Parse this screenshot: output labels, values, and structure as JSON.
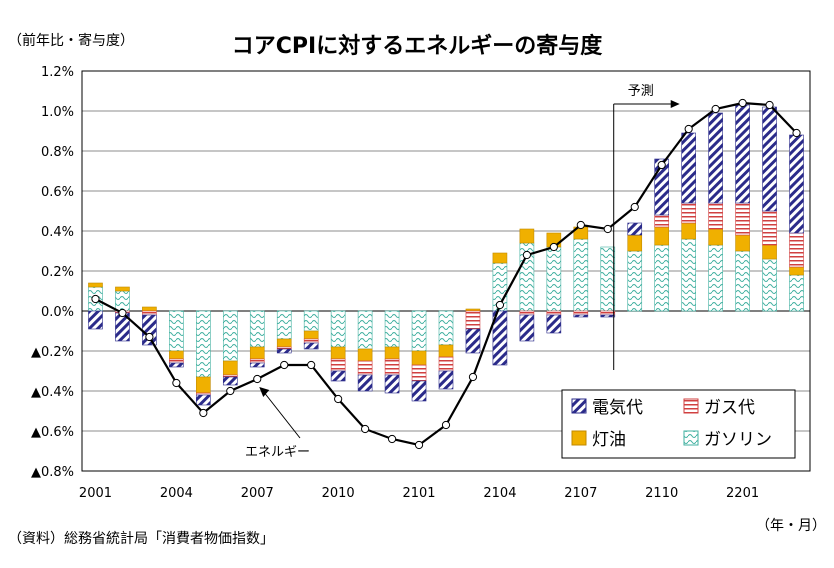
{
  "chart_data": {
    "type": "bar",
    "title": "コアCPIに対するエネルギーの寄与度",
    "ylabel": "（前年比・寄与度）",
    "xlabel": "（年・月）",
    "source": "（資料）総務省統計局「消費者物価指数」",
    "ylim": [
      -0.8,
      1.2
    ],
    "yticks": [
      1.2,
      1.0,
      0.8,
      0.6,
      0.4,
      0.2,
      0.0,
      -0.2,
      -0.4,
      -0.6,
      -0.8
    ],
    "ytick_labels": [
      "1.2%",
      "1.0%",
      "0.8%",
      "0.6%",
      "0.4%",
      "0.2%",
      "0.0%",
      "▲0.2%",
      "▲0.4%",
      "▲0.6%",
      "▲0.8%"
    ],
    "categories": [
      "2001",
      "2002",
      "2003",
      "2004",
      "2005",
      "2006",
      "2007",
      "2008",
      "2009",
      "2010",
      "2011",
      "2012",
      "2101",
      "2102",
      "2103",
      "2104",
      "2105",
      "2106",
      "2107",
      "2108",
      "2109",
      "2110",
      "2111",
      "2112",
      "2201",
      "2202",
      "2203"
    ],
    "xtick_labels": [
      "2001",
      "2004",
      "2007",
      "2010",
      "2101",
      "2104",
      "2107",
      "2110",
      "2201"
    ],
    "series": [
      {
        "name": "電気代",
        "color": "#2b2b8a",
        "values": [
          -0.09,
          -0.14,
          -0.15,
          -0.02,
          -0.05,
          -0.04,
          -0.02,
          -0.02,
          -0.03,
          -0.05,
          -0.08,
          -0.09,
          -0.1,
          -0.09,
          -0.12,
          -0.27,
          -0.13,
          -0.09,
          -0.01,
          -0.01,
          0.06,
          0.28,
          0.35,
          0.45,
          0.49,
          0.52,
          0.49
        ]
      },
      {
        "name": "ガス代",
        "color": "#d04040",
        "values": [
          0.0,
          -0.01,
          -0.02,
          -0.02,
          -0.01,
          -0.01,
          -0.02,
          -0.01,
          -0.02,
          -0.06,
          -0.07,
          -0.08,
          -0.08,
          -0.07,
          -0.09,
          0.0,
          -0.02,
          -0.02,
          -0.02,
          -0.02,
          0.0,
          0.06,
          0.1,
          0.13,
          0.16,
          0.17,
          0.17
        ]
      },
      {
        "name": "灯油",
        "color": "#f0b000",
        "values": [
          0.02,
          0.02,
          0.02,
          -0.04,
          -0.08,
          -0.07,
          -0.06,
          -0.04,
          -0.04,
          -0.06,
          -0.06,
          -0.06,
          -0.07,
          -0.06,
          0.01,
          0.05,
          0.07,
          0.07,
          0.06,
          0.0,
          0.08,
          0.09,
          0.08,
          0.08,
          0.08,
          0.07,
          0.04
        ]
      },
      {
        "name": "ガソリン",
        "color": "#40b0a0",
        "values": [
          0.12,
          0.1,
          0.0,
          -0.2,
          -0.33,
          -0.25,
          -0.18,
          -0.14,
          -0.1,
          -0.18,
          -0.19,
          -0.18,
          -0.2,
          -0.17,
          0.0,
          0.24,
          0.34,
          0.32,
          0.36,
          0.32,
          0.3,
          0.33,
          0.36,
          0.33,
          0.3,
          0.26,
          0.18
        ]
      }
    ],
    "line": {
      "name": "エネルギー",
      "values": [
        0.06,
        -0.01,
        -0.13,
        -0.36,
        -0.51,
        -0.4,
        -0.34,
        -0.27,
        -0.27,
        -0.44,
        -0.59,
        -0.64,
        -0.67,
        -0.57,
        -0.33,
        0.03,
        0.28,
        0.32,
        0.43,
        0.41,
        0.52,
        0.73,
        0.91,
        1.01,
        1.04,
        1.03,
        0.89
      ]
    },
    "annotations": {
      "forecast_label": "予測",
      "forecast_start_index": 19,
      "line_label": "エネルギー"
    },
    "legend_position": "bottom-right",
    "grid": true
  }
}
